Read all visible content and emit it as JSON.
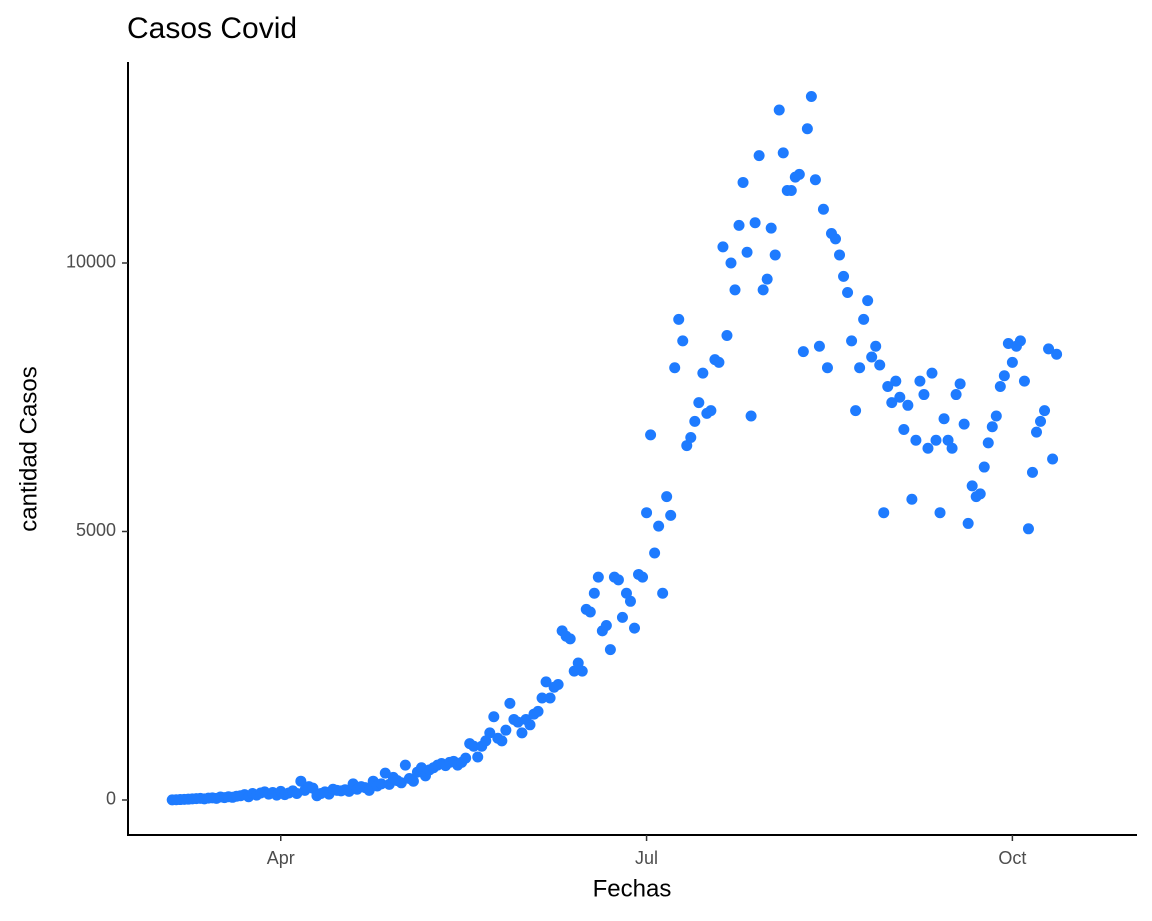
{
  "chart_data": {
    "type": "scatter",
    "title": "Casos Covid",
    "x_label": "Fechas",
    "y_label": "cantidad Casos",
    "color": "#1e7bff",
    "x": [
      65,
      66,
      67,
      68,
      69,
      70,
      71,
      72,
      73,
      74,
      75,
      76,
      77,
      78,
      79,
      80,
      81,
      82,
      83,
      84,
      85,
      86,
      87,
      88,
      89,
      90,
      91,
      92,
      93,
      94,
      95,
      96,
      97,
      98,
      99,
      100,
      101,
      102,
      103,
      104,
      105,
      106,
      107,
      108,
      109,
      110,
      111,
      112,
      113,
      114,
      115,
      116,
      117,
      118,
      119,
      120,
      121,
      122,
      123,
      124,
      125,
      126,
      127,
      128,
      129,
      130,
      131,
      132,
      133,
      134,
      135,
      136,
      137,
      138,
      139,
      140,
      141,
      142,
      143,
      144,
      145,
      146,
      147,
      148,
      149,
      150,
      151,
      152,
      153,
      154,
      155,
      156,
      157,
      158,
      159,
      160,
      161,
      162,
      163,
      164,
      165,
      166,
      167,
      168,
      169,
      170,
      171,
      172,
      173,
      174,
      175,
      176,
      177,
      178,
      179,
      180,
      181,
      182,
      183,
      184,
      185,
      186,
      187,
      188,
      189,
      190,
      191,
      192,
      193,
      194,
      195,
      196,
      197,
      198,
      199,
      200,
      201,
      202,
      203,
      204,
      205,
      206,
      207,
      208,
      209,
      210,
      211,
      212,
      213,
      214,
      215,
      216,
      217,
      218,
      219,
      220,
      221,
      222,
      223,
      224,
      225,
      226,
      227,
      228,
      229,
      230,
      231,
      232,
      233,
      234,
      235,
      236,
      237,
      238,
      239,
      240,
      241,
      242,
      243,
      244,
      245,
      246,
      247,
      248,
      249,
      250,
      251,
      252,
      253,
      254,
      255,
      256,
      257,
      258,
      259,
      260,
      261,
      262,
      263,
      264,
      265,
      266,
      267,
      268,
      269,
      270,
      271,
      272,
      273,
      274,
      275,
      276,
      277,
      278,
      279,
      280,
      281,
      282,
      283,
      284,
      285
    ],
    "values": [
      2,
      5,
      8,
      12,
      15,
      20,
      25,
      30,
      20,
      35,
      40,
      30,
      55,
      45,
      60,
      50,
      70,
      80,
      100,
      60,
      120,
      90,
      130,
      150,
      110,
      140,
      90,
      160,
      100,
      130,
      170,
      120,
      350,
      180,
      250,
      220,
      80,
      120,
      150,
      110,
      200,
      180,
      170,
      190,
      160,
      300,
      200,
      250,
      230,
      180,
      350,
      260,
      300,
      500,
      290,
      420,
      360,
      320,
      650,
      400,
      350,
      520,
      600,
      450,
      560,
      600,
      650,
      680,
      640,
      700,
      720,
      650,
      700,
      780,
      1050,
      1000,
      800,
      1000,
      1100,
      1250,
      1550,
      1150,
      1100,
      1300,
      1800,
      1500,
      1450,
      1250,
      1500,
      1400,
      1600,
      1650,
      1900,
      2200,
      1900,
      2100,
      2150,
      3150,
      3050,
      3000,
      2400,
      2550,
      2400,
      3550,
      3500,
      3850,
      4150,
      3150,
      3250,
      2800,
      4150,
      4100,
      3400,
      3850,
      3700,
      3200,
      4200,
      4150,
      5350,
      6800,
      4600,
      5100,
      3850,
      5650,
      5300,
      8050,
      8950,
      8550,
      6600,
      6750,
      7050,
      7400,
      7950,
      7200,
      7250,
      8200,
      8150,
      10300,
      8650,
      10000,
      9500,
      10700,
      11500,
      10200,
      7150,
      10750,
      12000,
      9500,
      9700,
      10650,
      10150,
      12850,
      12050,
      11350,
      11350,
      11600,
      11650,
      8350,
      12500,
      13100,
      11550,
      8450,
      11000,
      8050,
      10550,
      10450,
      10150,
      9750,
      9450,
      8550,
      7250,
      8050,
      8950,
      9300,
      8250,
      8450,
      8100,
      5350,
      7700,
      7400,
      7800,
      7500,
      6900,
      7350,
      5600,
      6700,
      7800,
      7550,
      6550,
      7950,
      6700,
      5350,
      7100,
      6700,
      6550,
      7550,
      7750,
      7000,
      5150,
      5850,
      5650,
      5700,
      6200,
      6650,
      6950,
      7150,
      7700,
      7900,
      8500,
      8150,
      8450,
      8550,
      7800,
      5050,
      6100,
      6850,
      7050,
      7250,
      8400,
      6350,
      8300
    ],
    "xlim": [
      54,
      305
    ],
    "xticks": [
      {
        "value": 92,
        "label": "Apr"
      },
      {
        "value": 183,
        "label": "Jul"
      },
      {
        "value": 274,
        "label": "Oct"
      }
    ],
    "ylim": [
      -652,
      13743
    ],
    "yticks": [
      0,
      5000,
      10000
    ],
    "grid": false
  }
}
